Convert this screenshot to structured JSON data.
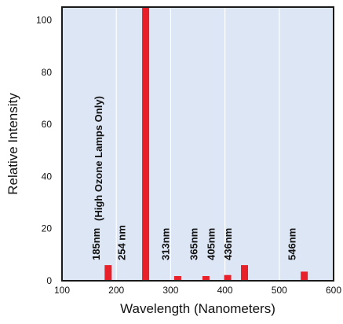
{
  "chart_data": {
    "type": "bar",
    "xlabel": "Wavelength (Nanometers)",
    "ylabel": "Relative Intensity",
    "xlim": [
      100,
      600
    ],
    "ylim": [
      0,
      105
    ],
    "grid": true,
    "x_ticks": [
      100,
      200,
      300,
      400,
      500,
      600
    ],
    "y_ticks": [
      0,
      20,
      40,
      60,
      80,
      100
    ],
    "colors": {
      "plot_background": "#dde6f4",
      "bar": "#e8202a",
      "grid": "#ffffff",
      "frame": "#1a1a1a"
    },
    "bars": [
      {
        "wavelength": 185,
        "value": 6
      },
      {
        "wavelength": 254,
        "value": 105
      },
      {
        "wavelength": 313,
        "value": 1.8
      },
      {
        "wavelength": 365,
        "value": 1.8
      },
      {
        "wavelength": 405,
        "value": 2.2
      },
      {
        "wavelength": 436,
        "value": 6
      },
      {
        "wavelength": 546,
        "value": 3.5
      }
    ],
    "annotations": [
      {
        "text": "185nm",
        "x": 185
      },
      {
        "text": "(High Ozone Lamps Only)",
        "x": 185
      },
      {
        "text": "254 nm",
        "x": 232
      },
      {
        "text": "313nm",
        "x": 313
      },
      {
        "text": "365nm",
        "x": 365
      },
      {
        "text": "405nm",
        "x": 397
      },
      {
        "text": "436nm",
        "x": 428
      },
      {
        "text": "546nm",
        "x": 546
      }
    ]
  }
}
